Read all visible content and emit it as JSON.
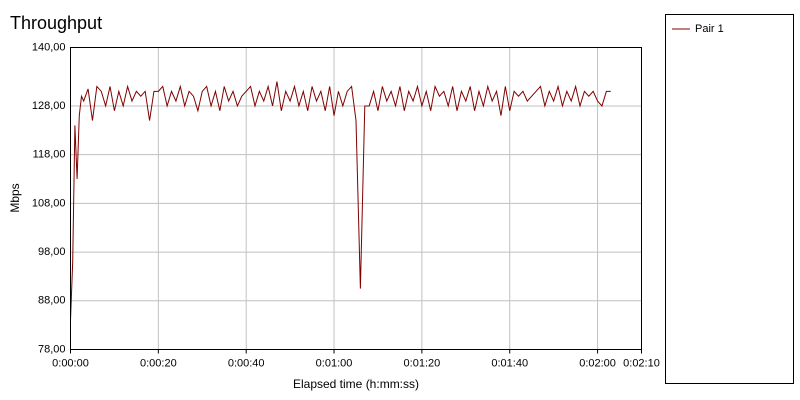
{
  "chart_data": {
    "type": "line",
    "title": "Throughput",
    "x_label": "Elapsed time (h:mm:ss)",
    "y_label": "Mbps",
    "x": [
      0,
      0.5,
      1,
      1.5,
      2,
      2.5,
      3,
      4,
      5,
      6,
      7,
      8,
      9,
      10,
      11,
      12,
      13,
      14,
      15,
      16,
      17,
      18,
      19,
      20,
      21,
      22,
      23,
      24,
      25,
      26,
      27,
      28,
      29,
      30,
      31,
      32,
      33,
      34,
      35,
      36,
      37,
      38,
      39,
      40,
      41,
      42,
      43,
      44,
      45,
      46,
      47,
      48,
      49,
      50,
      51,
      52,
      53,
      54,
      55,
      56,
      57,
      58,
      59,
      60,
      61,
      62,
      63,
      64,
      65,
      66,
      67,
      68,
      69,
      70,
      71,
      72,
      73,
      74,
      75,
      76,
      77,
      78,
      79,
      80,
      81,
      82,
      83,
      84,
      85,
      86,
      87,
      88,
      89,
      90,
      91,
      92,
      93,
      94,
      95,
      96,
      97,
      98,
      99,
      100,
      101,
      102,
      103,
      104,
      105,
      106,
      107,
      108,
      109,
      110,
      111,
      112,
      113,
      114,
      115,
      116,
      117,
      118,
      119,
      120,
      121,
      122,
      123
    ],
    "series": [
      {
        "name": "Pair 1",
        "color": "#800000",
        "values": [
          84,
          96,
          124,
          113,
          126,
          130,
          129,
          131.5,
          125,
          132,
          131,
          128,
          132,
          127,
          131,
          128,
          132,
          129,
          131,
          130,
          131,
          125,
          131,
          131,
          132,
          128,
          131,
          129,
          132,
          128,
          131,
          130,
          127,
          131,
          132,
          128,
          131,
          127,
          132,
          129,
          131,
          128,
          130,
          131,
          132,
          128,
          131,
          129,
          132,
          128,
          133,
          127,
          131,
          129,
          132,
          128,
          131,
          127,
          132,
          129,
          131,
          127,
          132,
          126,
          131,
          128,
          131,
          132,
          125,
          90.5,
          128,
          128,
          131,
          127,
          132,
          129,
          131,
          128,
          132,
          127,
          131,
          129,
          132,
          128,
          131,
          127,
          132,
          130,
          131,
          128,
          132,
          127,
          131,
          129,
          132,
          127,
          131,
          128,
          132,
          129,
          131,
          126,
          132,
          127,
          131,
          130,
          131,
          129,
          130,
          131,
          132,
          128,
          131,
          129,
          132,
          128,
          131,
          129,
          132,
          128,
          131,
          130,
          131,
          129,
          128,
          131,
          131
        ]
      }
    ],
    "xlim": [
      0,
      130
    ],
    "xticks": [
      {
        "value": 0,
        "label": "0:00:00"
      },
      {
        "value": 20,
        "label": "0:00:20"
      },
      {
        "value": 40,
        "label": "0:00:40"
      },
      {
        "value": 60,
        "label": "0:01:00"
      },
      {
        "value": 80,
        "label": "0:01:20"
      },
      {
        "value": 100,
        "label": "0:01:40"
      },
      {
        "value": 120,
        "label": "0:02:00"
      },
      {
        "value": 130,
        "label": "0:02:10"
      }
    ],
    "ylim": [
      78,
      140
    ],
    "yticks": [
      {
        "value": 78,
        "label": "78,00"
      },
      {
        "value": 88,
        "label": "88,00"
      },
      {
        "value": 98,
        "label": "98,00"
      },
      {
        "value": 108,
        "label": "108,00"
      },
      {
        "value": 118,
        "label": "118,00"
      },
      {
        "value": 128,
        "label": "128,00"
      },
      {
        "value": 140,
        "label": "140,00"
      }
    ],
    "grid": true
  }
}
